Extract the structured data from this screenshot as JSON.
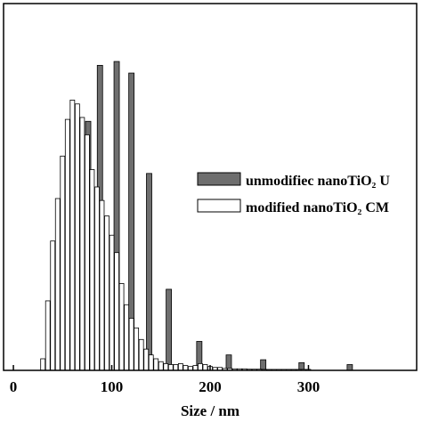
{
  "chart_data": {
    "type": "bar",
    "xlabel": "Size / nm",
    "ylabel": "",
    "title": "",
    "xlim": [
      -10,
      410
    ],
    "ylim": [
      0,
      19
    ],
    "x_ticks": [
      0,
      100,
      200,
      300
    ],
    "legend": {
      "placement": "right"
    },
    "colors": {
      "unmodified": "#6e6e6e",
      "modified": "#ffffff",
      "outline": "#000000"
    },
    "series": [
      {
        "name": "unmodifiec nanoTiO₂ U",
        "x": [
          52,
          59,
          67,
          76,
          88,
          105,
          120,
          138,
          158,
          189,
          219,
          254,
          293,
          342
        ],
        "values": [
          3.0,
          5.8,
          8.5,
          12.9,
          15.8,
          16.0,
          15.4,
          10.2,
          4.2,
          1.5,
          0.8,
          0.55,
          0.4,
          0.3
        ]
      },
      {
        "name": "modified nanoTiO₂ CM",
        "x": [
          30,
          35,
          40,
          45,
          50,
          55,
          60,
          65,
          70,
          75,
          80,
          85,
          90,
          95,
          100,
          105,
          110,
          115,
          120,
          125,
          130,
          135,
          140,
          145,
          150,
          155,
          160,
          165,
          170,
          175,
          180,
          185,
          190,
          195,
          200,
          205,
          210,
          215,
          220,
          225,
          230,
          235,
          240,
          245,
          250,
          255,
          260,
          265,
          270,
          275,
          280,
          285,
          290,
          295,
          300
        ],
        "values": [
          0.6,
          3.6,
          6.7,
          8.9,
          11.1,
          13.0,
          14.0,
          13.8,
          13.1,
          12.2,
          10.4,
          9.5,
          8.8,
          8.0,
          7.0,
          6.1,
          4.5,
          3.4,
          2.7,
          2.2,
          1.6,
          1.1,
          0.8,
          0.6,
          0.45,
          0.35,
          0.3,
          0.3,
          0.35,
          0.25,
          0.2,
          0.25,
          0.35,
          0.3,
          0.2,
          0.15,
          0.15,
          0.1,
          0.1,
          0.08,
          0.08,
          0.08,
          0.06,
          0.06,
          0.06,
          0.05,
          0.05,
          0.05,
          0.05,
          0.05,
          0.05,
          0.05,
          0.05,
          0.05,
          0.05
        ]
      }
    ]
  }
}
